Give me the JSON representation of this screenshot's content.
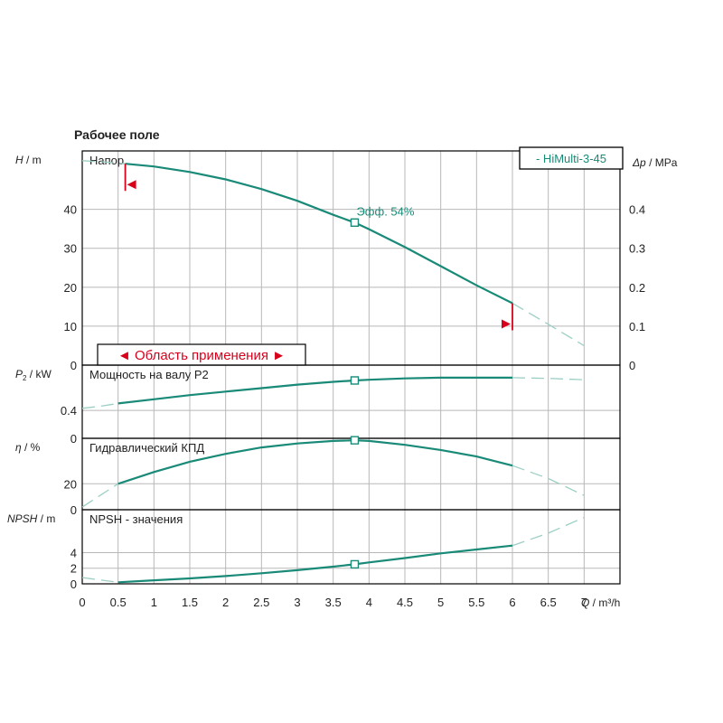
{
  "title": "Рабочее поле",
  "legend_label": "- HiMulti-3-45",
  "colors": {
    "curve": "#1a8a78",
    "ext": "#9ccfc4",
    "marker": "#d9001b",
    "grid": "#b8b8b8",
    "frame": "#000000"
  },
  "chart_data": {
    "type": "line",
    "x": {
      "label_name": "Q",
      "label_unit": " / m³/h",
      "ticks": [
        0,
        0.5,
        1,
        1.5,
        2,
        2.5,
        3,
        3.5,
        4,
        4.5,
        5,
        5.5,
        6,
        6.5,
        7
      ],
      "range": [
        0,
        7.5
      ]
    },
    "operating_point_q": 3.8,
    "panels": [
      {
        "id": "head",
        "title": "Напор",
        "ylabel_name": "H",
        "ylabel_unit": " / m",
        "ylim": [
          0,
          55
        ],
        "yticks": [
          0,
          10,
          20,
          30,
          40
        ],
        "right_axis": {
          "label_name": "Δp",
          "label_unit": " / MPa",
          "ticks": [
            0,
            0.1,
            0.2,
            0.3,
            0.4
          ],
          "factor": 0.01
        },
        "series": [
          {
            "x": [
              0.6,
              1.0,
              1.5,
              2.0,
              2.5,
              3.0,
              3.5,
              3.8,
              4.0,
              4.5,
              5.0,
              5.5,
              6.0
            ],
            "y": [
              51.7,
              51.0,
              49.6,
              47.7,
              45.2,
              42.2,
              38.6,
              36.6,
              34.9,
              30.3,
              25.4,
              20.5,
              15.9
            ]
          }
        ],
        "extension_left": {
          "x": [
            0,
            0.3,
            0.6
          ],
          "y": [
            52.5,
            52.2,
            51.7
          ]
        },
        "extension_right": {
          "x": [
            6.0,
            6.5,
            7.0
          ],
          "y": [
            15.9,
            10.5,
            5.0
          ]
        },
        "point_label": "Эфф. 54%",
        "range_label": "◄ Область применения ►",
        "range_q": [
          0.6,
          6.0
        ]
      },
      {
        "id": "power",
        "title": "Мощность на валу P2",
        "ylabel_name": "P",
        "ylabel_sub": "2",
        "ylabel_unit": " / kW",
        "ylim": [
          0,
          1.05
        ],
        "yticks": [
          0,
          0.4
        ],
        "series": [
          {
            "x": [
              0.5,
              1.0,
              1.5,
              2.0,
              2.5,
              3.0,
              3.5,
              3.8,
              4.0,
              4.5,
              5.0,
              5.5,
              6.0
            ],
            "y": [
              0.5,
              0.56,
              0.62,
              0.67,
              0.72,
              0.77,
              0.81,
              0.83,
              0.84,
              0.86,
              0.87,
              0.87,
              0.87
            ]
          }
        ],
        "extension_left": {
          "x": [
            0,
            0.25,
            0.5
          ],
          "y": [
            0.43,
            0.46,
            0.5
          ]
        },
        "extension_right": {
          "x": [
            6.0,
            6.5,
            7.0
          ],
          "y": [
            0.87,
            0.86,
            0.84
          ]
        }
      },
      {
        "id": "efficiency",
        "title": "Гидравлический КПД",
        "ylabel_name": "η",
        "ylabel_unit": " / %",
        "ylim": [
          0,
          55
        ],
        "yticks": [
          0,
          20
        ],
        "series": [
          {
            "x": [
              0.5,
              1.0,
              1.5,
              2.0,
              2.5,
              3.0,
              3.5,
              3.8,
              4.0,
              4.5,
              5.0,
              5.5,
              6.0
            ],
            "y": [
              20,
              29,
              37,
              43,
              48,
              51,
              53,
              53.5,
              53,
              50,
              46,
              41,
              34
            ]
          }
        ],
        "extension_left": {
          "x": [
            0,
            0.25,
            0.5
          ],
          "y": [
            2,
            11,
            20
          ]
        },
        "extension_right": {
          "x": [
            6.0,
            6.5,
            7.0
          ],
          "y": [
            34,
            24,
            11
          ]
        }
      },
      {
        "id": "npsh",
        "title": "NPSH - значения",
        "ylabel_name": "NPSH",
        "ylabel_unit": " / m",
        "ylim": [
          0,
          9.5
        ],
        "yticks": [
          0,
          2,
          4
        ],
        "series": [
          {
            "x": [
              0.5,
              1.0,
              1.5,
              2.0,
              2.5,
              3.0,
              3.5,
              3.8,
              4.0,
              4.5,
              5.0,
              5.5,
              6.0
            ],
            "y": [
              0.2,
              0.45,
              0.7,
              1.0,
              1.35,
              1.75,
              2.2,
              2.5,
              2.75,
              3.3,
              3.9,
              4.4,
              4.9
            ]
          }
        ],
        "extension_left": {
          "x": [
            0,
            0.25,
            0.5
          ],
          "y": [
            0.8,
            0.5,
            0.2
          ]
        },
        "extension_right": {
          "x": [
            6.0,
            6.5,
            7.0
          ],
          "y": [
            4.9,
            6.5,
            8.5
          ]
        }
      }
    ]
  }
}
